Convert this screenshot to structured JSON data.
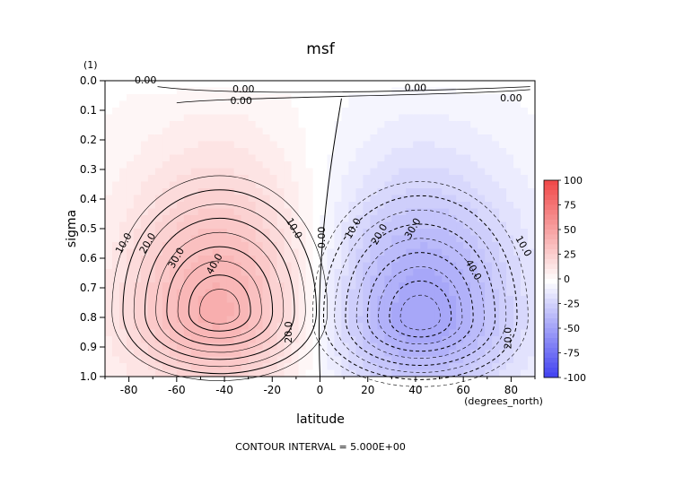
{
  "chart_data": {
    "type": "heatmap",
    "title": "msf",
    "xlabel": "latitude",
    "x_units": "(degrees_north)",
    "ylabel": "sigma",
    "y_units": "(1)",
    "xlim": [
      -90,
      90
    ],
    "ylim": [
      1.0,
      0.0
    ],
    "x_ticks": [
      -80,
      -60,
      -40,
      -20,
      0,
      20,
      40,
      60,
      80
    ],
    "y_ticks": [
      0.0,
      0.1,
      0.2,
      0.3,
      0.4,
      0.5,
      0.6,
      0.7,
      0.8,
      0.9,
      1.0
    ],
    "colorbar_ticks": [
      100,
      75,
      50,
      25,
      0,
      -25,
      -50,
      -75,
      -100
    ],
    "colormap": {
      "negative": "#3c3cf0",
      "zero": "#ffffff",
      "positive": "#f04b4b",
      "range": [
        -100,
        100
      ]
    },
    "field": {
      "description": "two overturning cells",
      "cells": [
        {
          "center_lat": -42,
          "center_sigma": 0.78,
          "peak_value": 45
        },
        {
          "center_lat": 42,
          "center_sigma": 0.8,
          "peak_value": -48
        }
      ]
    },
    "contour_labels": [
      "0.00",
      "0.00",
      "0.00",
      "0.00",
      "0.00",
      "0.00",
      "10.0",
      "20.0",
      "30.0",
      "40.0",
      "10.0",
      "20.0",
      "10.0",
      "20.0",
      "30.0",
      "40.0",
      "10.0",
      "20.0"
    ],
    "footer": "CONTOUR INTERVAL = 5.000E+00"
  }
}
